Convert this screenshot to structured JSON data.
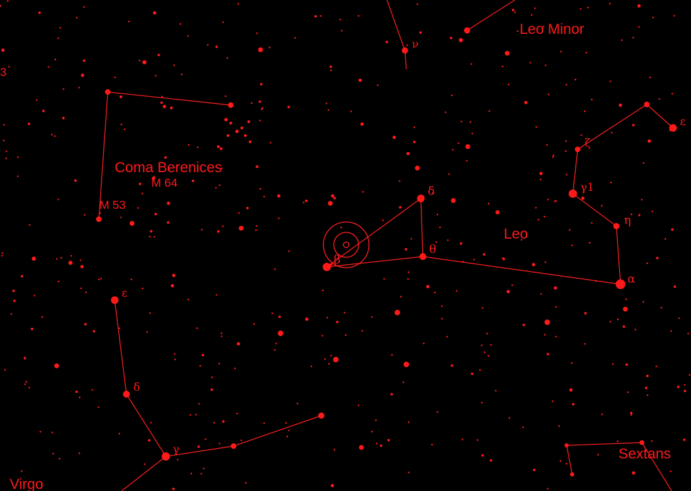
{
  "colors": {
    "background": "#000000",
    "accent": "#ff1a1a",
    "line": "#ff2020"
  },
  "labels": {
    "leo_minor": "Leo Minor",
    "coma": "Coma Berenices",
    "leo": "Leo",
    "sextans": "Sextans",
    "virgo": "Virgo",
    "m64": "M 64",
    "m53": "M 53",
    "edge_num": "3"
  },
  "greek": {
    "nu": "ν",
    "delta_leo": "δ",
    "theta_leo": "θ",
    "beta_leo": "β",
    "alpha_leo": "α",
    "eta_leo": "η",
    "gamma1_leo": "γ1",
    "zeta_leo": "ζ",
    "epsilon_leo": "ε",
    "epsilon_vir": "ε",
    "delta_vir": "δ",
    "gamma_vir": "γ"
  },
  "target": {
    "icon": "telescope-target-icon"
  }
}
